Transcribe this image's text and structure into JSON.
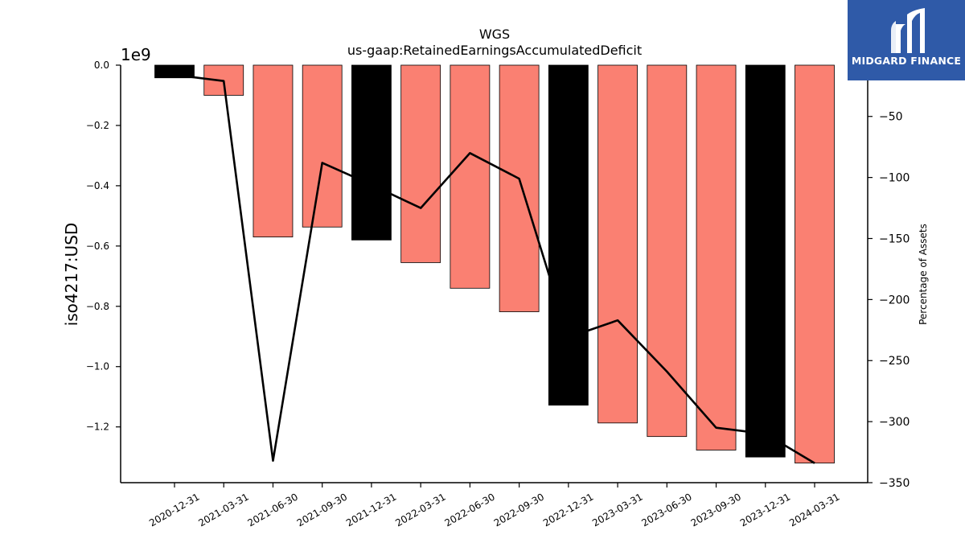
{
  "chart_data": {
    "type": "bar",
    "title": "WGS",
    "subtitle": "us-gaap:RetainedEarningsAccumulatedDeficit",
    "ylabel": "iso4217:USD",
    "y2label": "Percentage of Assets",
    "y_offset_label": "1e9",
    "categories": [
      "2020-12-31",
      "2021-03-31",
      "2021-06-30",
      "2021-09-30",
      "2021-12-31",
      "2022-03-31",
      "2022-06-30",
      "2022-09-30",
      "2022-12-31",
      "2023-03-31",
      "2023-06-30",
      "2023-09-30",
      "2023-12-31",
      "2024-03-31"
    ],
    "bar_values_1e9": [
      -0.042,
      -0.1,
      -0.57,
      -0.537,
      -0.58,
      -0.655,
      -0.74,
      -0.818,
      -1.128,
      -1.187,
      -1.232,
      -1.277,
      -1.3,
      -1.32
    ],
    "bar_colors": [
      "#000000",
      "#fa8072",
      "#fa8072",
      "#fa8072",
      "#000000",
      "#fa8072",
      "#fa8072",
      "#fa8072",
      "#000000",
      "#fa8072",
      "#fa8072",
      "#fa8072",
      "#000000",
      "#fa8072"
    ],
    "line_values_pct": [
      -16,
      -21,
      -332,
      -88,
      -106,
      -125,
      -80,
      -101,
      -231,
      -217,
      -259,
      -305,
      -310,
      -334
    ],
    "ylim": [
      -1.385,
      0
    ],
    "y2lim": [
      -350,
      -8
    ],
    "yticks": [
      0.0,
      -0.2,
      -0.4,
      -0.6,
      -0.8,
      -1.0,
      -1.2
    ],
    "ytick_labels": [
      "0.0",
      "−0.2",
      "−0.4",
      "−0.6",
      "−0.8",
      "−1.0",
      "−1.2"
    ],
    "y2ticks": [
      -50,
      -100,
      -150,
      -200,
      -250,
      -300,
      -350
    ],
    "y2tick_labels": [
      "−50",
      "−100",
      "−150",
      "−200",
      "−250",
      "−300",
      "−350"
    ],
    "legend": "none",
    "grid": false
  },
  "logo": {
    "text": "MIDGARD FINANCE"
  }
}
